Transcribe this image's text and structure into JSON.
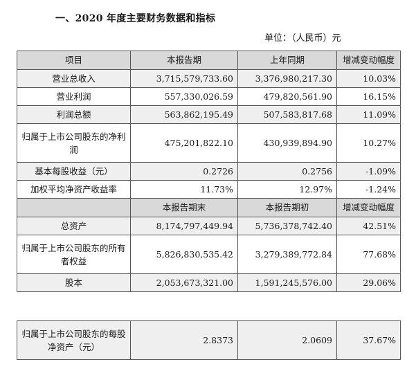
{
  "heading": "一、2020 年度主要财务数据和指标",
  "unit": "单位：（人民币）元",
  "header1": {
    "item": "项目",
    "current": "本报告期",
    "prior": "上年同期",
    "change": "增减变动幅度"
  },
  "rows1": [
    {
      "item": "营业总收入",
      "current": "3,715,579,733.60",
      "prior": "3,376,980,217.30",
      "change": "10.03%"
    },
    {
      "item": "营业利润",
      "current": "557,330,026.59",
      "prior": "479,820,561.90",
      "change": "16.15%"
    },
    {
      "item": "利润总额",
      "current": "563,862,195.49",
      "prior": "507,583,817.68",
      "change": "11.09%"
    },
    {
      "item": "归属于上市公司股东的净利润",
      "current": "475,201,822.10",
      "prior": "430,939,894.90",
      "change": "10.27%"
    },
    {
      "item": "基本每股收益（元）",
      "current": "0.2726",
      "prior": "0.2756",
      "change": "-1.09%"
    },
    {
      "item": "加权平均净资产收益率",
      "current": "11.73%",
      "prior": "12.97%",
      "change": "-1.24%"
    }
  ],
  "header2": {
    "item": "",
    "current": "本报告期末",
    "prior": "本报告期初",
    "change": "增减变动幅度"
  },
  "rows2": [
    {
      "item": "总资产",
      "current": "8,174,797,449.94",
      "prior": "5,736,378,742.40",
      "change": "42.51%"
    },
    {
      "item": "归属于上市公司股东的所有者权益",
      "current": "5,826,830,535.42",
      "prior": "3,279,389,772.84",
      "change": "77.68%"
    },
    {
      "item": "股本",
      "current": "2,053,673,321.00",
      "prior": "1,591,245,576.00",
      "change": "29.06%"
    }
  ],
  "rows3": [
    {
      "item": "归属于上市公司股东的每股净资产（元）",
      "current": "2.8373",
      "prior": "2.0609",
      "change": "37.67%"
    }
  ]
}
